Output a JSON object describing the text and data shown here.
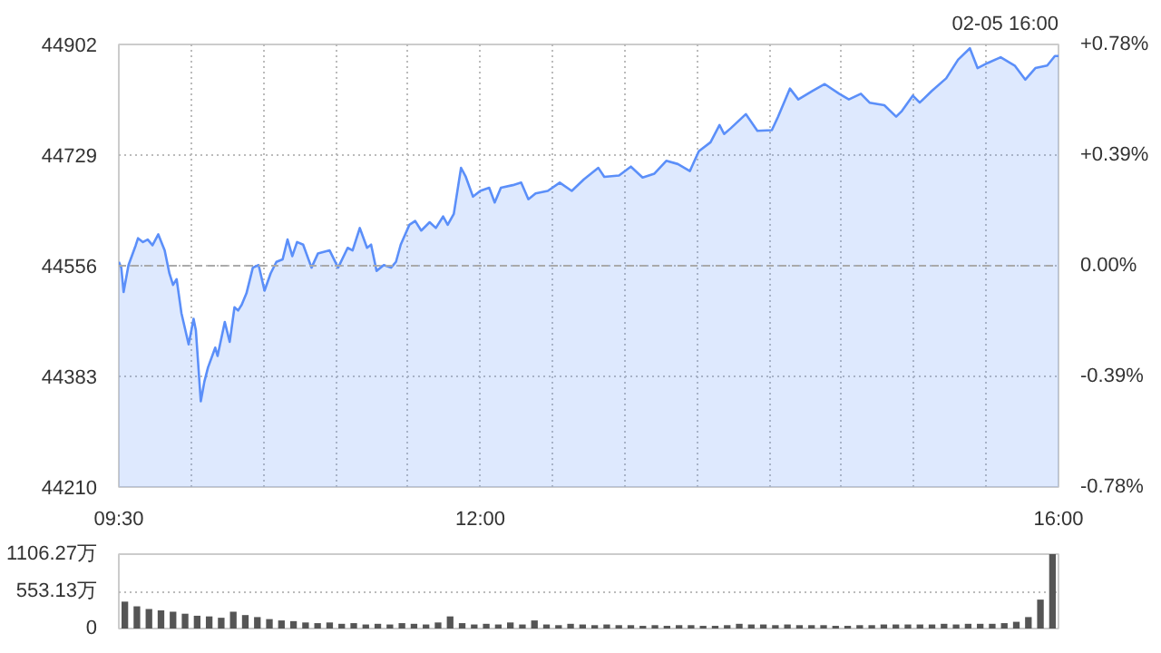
{
  "chart_data": [
    {
      "type": "area",
      "annotations": [
        "02-05 16:00"
      ],
      "x": [
        9.5,
        9.517,
        9.533,
        9.567,
        9.617,
        9.633,
        9.667,
        9.7,
        9.733,
        9.773,
        9.817,
        9.85,
        9.875,
        9.9,
        9.933,
        9.983,
        10.017,
        10.033,
        10.067,
        10.092,
        10.117,
        10.167,
        10.183,
        10.233,
        10.267,
        10.3,
        10.325,
        10.35,
        10.383,
        10.427,
        10.467,
        10.508,
        10.55,
        10.59,
        10.633,
        10.667,
        10.7,
        10.733,
        10.775,
        10.833,
        10.877,
        10.958,
        11.017,
        11.083,
        11.117,
        11.167,
        11.217,
        11.245,
        11.283,
        11.333,
        11.383,
        11.417,
        11.45,
        11.51,
        11.55,
        11.592,
        11.65,
        11.693,
        11.743,
        11.775,
        11.817,
        11.867,
        11.9,
        11.95,
        12.0,
        12.062,
        12.1,
        12.143,
        12.225,
        12.283,
        12.333,
        12.383,
        12.467,
        12.55,
        12.633,
        12.717,
        12.817,
        12.858,
        12.96,
        13.042,
        13.123,
        13.205,
        13.287,
        13.367,
        13.45,
        13.512,
        13.593,
        13.655,
        13.687,
        13.733,
        13.837,
        13.917,
        14.017,
        14.06,
        14.142,
        14.2,
        14.297,
        14.383,
        14.483,
        14.55,
        14.633,
        14.693,
        14.795,
        14.877,
        14.917,
        14.992,
        15.04,
        15.122,
        15.223,
        15.305,
        15.387,
        15.44,
        15.51,
        15.6,
        15.697,
        15.77,
        15.84,
        15.922,
        15.975,
        16.0
      ],
      "series": [
        {
          "color": "#5b8ff9",
          "values": [
            44562,
            44553,
            44515,
            44557,
            44588,
            44599,
            44593,
            44597,
            44588,
            44605,
            44580,
            44544,
            44526,
            44535,
            44482,
            44433,
            44473,
            44455,
            44344,
            44375,
            44397,
            44428,
            44415,
            44468,
            44437,
            44491,
            44486,
            44495,
            44513,
            44553,
            44557,
            44517,
            44544,
            44562,
            44566,
            44597,
            44571,
            44593,
            44589,
            44553,
            44575,
            44580,
            44553,
            44584,
            44580,
            44615,
            44584,
            44589,
            44548,
            44557,
            44553,
            44562,
            44589,
            44620,
            44626,
            44611,
            44624,
            44615,
            44633,
            44620,
            44637,
            44709,
            44695,
            44664,
            44673,
            44678,
            44655,
            44678,
            44682,
            44686,
            44660,
            44669,
            44673,
            44686,
            44673,
            44691,
            44709,
            44695,
            44697,
            44711,
            44694,
            44700,
            44720,
            44715,
            44704,
            44735,
            44749,
            44776,
            44762,
            44771,
            44793,
            44767,
            44768,
            44789,
            44833,
            44816,
            44829,
            44840,
            44825,
            44816,
            44825,
            44811,
            44807,
            44789,
            44798,
            44822,
            44811,
            44829,
            44849,
            44878,
            44896,
            44865,
            44873,
            44882,
            44869,
            44847,
            44865,
            44869,
            44884,
            44884
          ]
        }
      ],
      "xlim": [
        9.5,
        16.0
      ],
      "xticks": [
        {
          "value": 9.5,
          "label": "09:30"
        },
        {
          "value": 10,
          "label": null
        },
        {
          "value": 10.5,
          "label": null
        },
        {
          "value": 11,
          "label": null
        },
        {
          "value": 11.5,
          "label": null
        },
        {
          "value": 12,
          "label": "12:00"
        },
        {
          "value": 12.5,
          "label": null
        },
        {
          "value": 13,
          "label": null
        },
        {
          "value": 13.5,
          "label": null
        },
        {
          "value": 14,
          "label": null
        },
        {
          "value": 14.5,
          "label": null
        },
        {
          "value": 15,
          "label": null
        },
        {
          "value": 15.5,
          "label": null
        },
        {
          "value": 16,
          "label": "16:00"
        }
      ],
      "ylim": [
        44210,
        44902
      ],
      "yticks": [
        44210,
        44383,
        44556,
        44729,
        44902
      ],
      "y2lim": [
        -0.78,
        0.78
      ],
      "y2ticks": [
        {
          "value": -0.78,
          "label": "-0.78%"
        },
        {
          "value": -0.39,
          "label": "-0.39%"
        },
        {
          "value": 0,
          "label": "0.00%"
        },
        {
          "value": 0.39,
          "label": "+0.39%"
        },
        {
          "value": 0.78,
          "label": "+0.78%"
        }
      ],
      "ref_lines": [
        {
          "axis": "y",
          "value": 44556,
          "label": null,
          "color": "#aaaaaa",
          "line_style": "dashed"
        }
      ],
      "grid": true
    },
    {
      "type": "bar",
      "categories": [
        null,
        null,
        null,
        null,
        null,
        null,
        null,
        null,
        null,
        null,
        null,
        null,
        null,
        null,
        null,
        null,
        null,
        null,
        null,
        null,
        null,
        null,
        null,
        null,
        null,
        null,
        null,
        null,
        null,
        null,
        null,
        null,
        null,
        null,
        null,
        null,
        null,
        null,
        null,
        null,
        null,
        null,
        null,
        null,
        null,
        null,
        null,
        null,
        null,
        null,
        null,
        null,
        null,
        null,
        null,
        null,
        null,
        null,
        null,
        null,
        null,
        null,
        null,
        null,
        null,
        null,
        null,
        null,
        null,
        null,
        null,
        null,
        null,
        null,
        null,
        null,
        null,
        null
      ],
      "series": [
        {
          "color": "#555555",
          "values": [
            400,
            330,
            290,
            270,
            250,
            220,
            190,
            180,
            160,
            250,
            200,
            170,
            140,
            120,
            110,
            90,
            80,
            90,
            70,
            80,
            60,
            70,
            60,
            80,
            70,
            60,
            90,
            180,
            80,
            60,
            70,
            60,
            90,
            60,
            120,
            60,
            50,
            70,
            60,
            50,
            60,
            50,
            50,
            40,
            50,
            40,
            50,
            50,
            40,
            40,
            50,
            70,
            60,
            60,
            50,
            60,
            50,
            50,
            50,
            40,
            40,
            50,
            50,
            60,
            60,
            60,
            60,
            60,
            70,
            60,
            70,
            70,
            70,
            80,
            100,
            170,
            430,
            1106.27
          ]
        }
      ],
      "ylim": [
        0,
        1106.27
      ],
      "yticks": [
        0,
        {
          "value": 553.13,
          "label": "553.13万"
        },
        {
          "value": 1106.27,
          "label": "1106.27万"
        }
      ],
      "grid": "y",
      "tick_labels": "y"
    }
  ]
}
